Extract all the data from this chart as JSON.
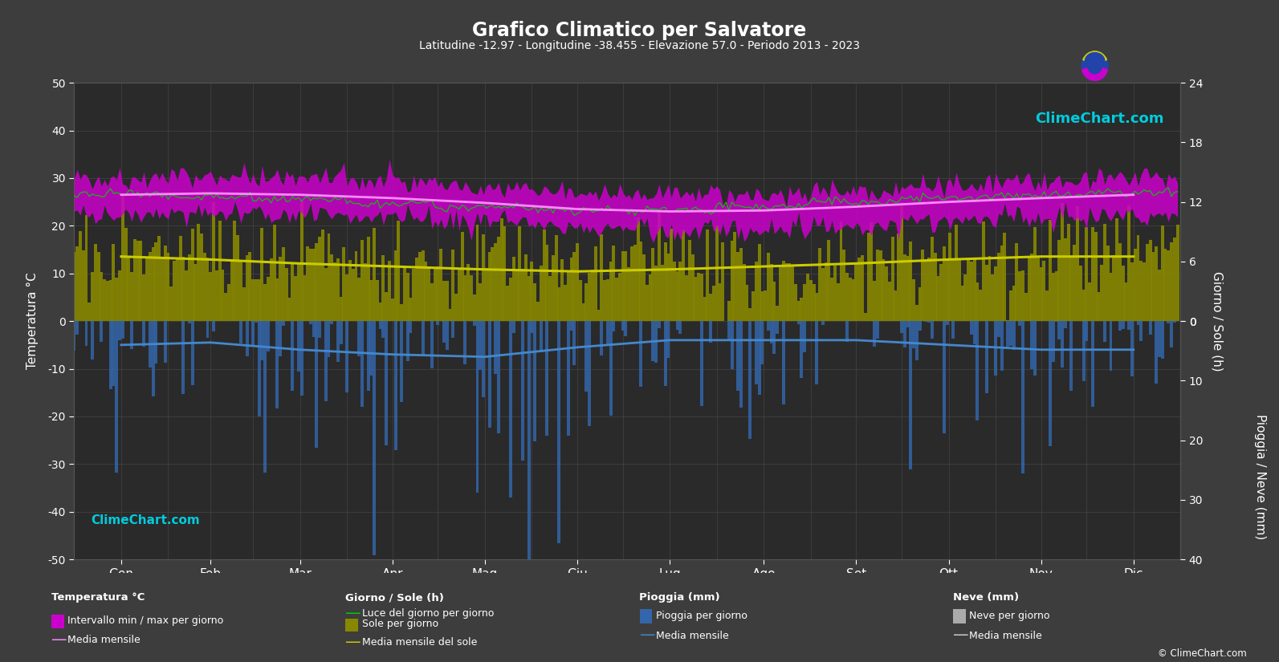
{
  "title": "Grafico Climatico per Salvatore",
  "subtitle": "Latitudine -12.97 - Longitudine -38.455 - Elevazione 57.0 - Periodo 2013 - 2023",
  "background_color": "#3d3d3d",
  "plot_bg_color": "#2a2a2a",
  "grid_color": "#555555",
  "text_color": "#ffffff",
  "months_it": [
    "Gen",
    "Feb",
    "Mar",
    "Apr",
    "Mag",
    "Giu",
    "Lug",
    "Ago",
    "Set",
    "Ott",
    "Nov",
    "Dic"
  ],
  "ylim_temp": [
    -50,
    50
  ],
  "temp_mean_monthly": [
    26.5,
    26.8,
    26.5,
    25.8,
    24.8,
    23.5,
    23.0,
    23.2,
    24.0,
    25.0,
    25.8,
    26.5
  ],
  "temp_min_mean": [
    22.5,
    22.8,
    22.5,
    21.8,
    20.8,
    19.5,
    19.0,
    19.2,
    20.0,
    21.0,
    21.8,
    22.5
  ],
  "temp_max_mean": [
    30.0,
    30.3,
    30.0,
    29.3,
    28.3,
    27.0,
    26.5,
    26.7,
    27.5,
    28.5,
    29.3,
    30.0
  ],
  "sun_mean_monthly": [
    6.5,
    6.2,
    5.8,
    5.5,
    5.2,
    5.0,
    5.2,
    5.5,
    5.8,
    6.2,
    6.5,
    6.5
  ],
  "daylight_mean_monthly": [
    12.8,
    12.5,
    12.2,
    11.8,
    11.5,
    11.2,
    11.2,
    11.5,
    12.0,
    12.4,
    12.7,
    12.9
  ],
  "rain_daily_prob": [
    0.45,
    0.42,
    0.48,
    0.52,
    0.55,
    0.5,
    0.4,
    0.38,
    0.38,
    0.42,
    0.5,
    0.48
  ],
  "rain_daily_scale_mm": [
    8,
    7,
    9,
    11,
    12,
    9,
    6,
    6,
    6,
    7,
    9,
    9
  ],
  "rain_mean_curve_mm": [
    -5,
    -4.5,
    -6,
    -7,
    -7.5,
    -5.5,
    -4,
    -4,
    -4,
    -5,
    -6,
    -6
  ],
  "watermark_text": "ClimeChart.com",
  "copyright_text": "© ClimeChart.com",
  "sun_bar_color": "#888800",
  "daylight_line_color": "#00cc00",
  "sun_mean_line_color": "#cccc00",
  "temp_band_color": "#cc00cc",
  "temp_mean_line_color": "#ff88ff",
  "rain_bar_color": "#3366aa",
  "rain_mean_line_color": "#4488cc",
  "snow_bar_color": "#aaaaaa",
  "snow_mean_line_color": "#cccccc"
}
